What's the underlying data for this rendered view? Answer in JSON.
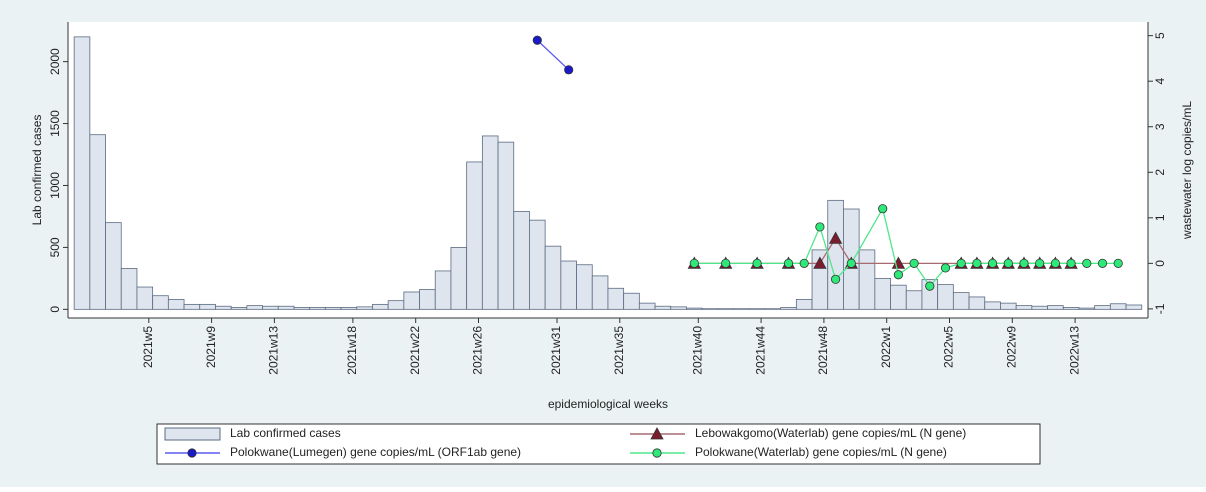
{
  "chart_data": {
    "type": "bar",
    "y_label": "Lab confirmed cases",
    "y2_label": "wastewater log copies/mL",
    "x_label": "epidemiological weeks",
    "categories": [
      null,
      null,
      null,
      null,
      "2021w5",
      null,
      null,
      null,
      "2021w9",
      null,
      null,
      null,
      "2021w13",
      null,
      null,
      null,
      null,
      "2021w18",
      null,
      null,
      null,
      "2021w22",
      null,
      null,
      null,
      "2021w26",
      null,
      null,
      null,
      null,
      "2021w31",
      null,
      null,
      null,
      "2021w35",
      null,
      null,
      null,
      null,
      "2021w40",
      null,
      null,
      null,
      "2021w44",
      null,
      null,
      null,
      "2021w48",
      null,
      null,
      null,
      "2022w1",
      null,
      null,
      null,
      "2022w5",
      null,
      null,
      null,
      "2022w9",
      null,
      null,
      null,
      "2022w13",
      null,
      null,
      null,
      null
    ],
    "series": [
      {
        "name": "Lab confirmed cases",
        "type": "bar",
        "color": "#dfe5ee",
        "stroke": "#5b6b82",
        "values": [
          2200,
          1410,
          700,
          330,
          180,
          110,
          80,
          40,
          40,
          25,
          15,
          30,
          25,
          25,
          15,
          15,
          15,
          15,
          20,
          40,
          70,
          140,
          160,
          310,
          500,
          1190,
          1400,
          1350,
          790,
          720,
          510,
          390,
          360,
          270,
          170,
          130,
          50,
          25,
          20,
          10,
          5,
          5,
          5,
          5,
          5,
          15,
          80,
          480,
          880,
          810,
          480,
          250,
          195,
          150,
          240,
          200,
          135,
          100,
          60,
          50,
          30,
          25,
          30,
          15,
          10,
          30,
          45,
          35
        ]
      },
      {
        "name": "Lebowakgomo(Waterlab) gene copies/mL (N gene)",
        "type": "line",
        "axis": "y2",
        "marker": "triangle",
        "color": "#a86a72",
        "marker_color": "#7b1c2e",
        "values": [
          null,
          null,
          null,
          null,
          null,
          null,
          null,
          null,
          null,
          null,
          null,
          null,
          null,
          null,
          null,
          null,
          null,
          null,
          null,
          null,
          null,
          null,
          null,
          null,
          null,
          null,
          null,
          null,
          null,
          null,
          null,
          null,
          null,
          null,
          null,
          null,
          null,
          null,
          null,
          0,
          null,
          0,
          null,
          0,
          null,
          0,
          null,
          0,
          0.55,
          0,
          null,
          null,
          0,
          null,
          null,
          null,
          0,
          0,
          0,
          0,
          0,
          0,
          0,
          0,
          null,
          null,
          null,
          null
        ]
      },
      {
        "name": "Polokwane(Lumegen) gene copies/mL (ORF1ab gene)",
        "type": "line",
        "axis": "y2",
        "marker": "circle",
        "color": "#5a5af0",
        "marker_color": "#1a1ac8",
        "values": [
          null,
          null,
          null,
          null,
          null,
          null,
          null,
          null,
          null,
          null,
          null,
          null,
          null,
          null,
          null,
          null,
          null,
          null,
          null,
          null,
          null,
          null,
          null,
          null,
          null,
          null,
          null,
          null,
          null,
          4.9,
          null,
          4.25,
          null,
          null,
          null,
          null,
          null,
          null,
          null,
          null,
          null,
          null,
          null,
          null,
          null,
          null,
          null,
          null,
          null,
          null,
          null,
          null,
          null,
          null,
          null,
          null,
          null,
          null,
          null,
          null,
          null,
          null,
          null,
          null,
          null,
          null,
          null,
          null
        ]
      },
      {
        "name": "Polokwane(Waterlab) gene copies/mL (N gene)",
        "type": "line",
        "axis": "y2",
        "marker": "circle",
        "color": "#4ee88a",
        "marker_color": "#2ee87a",
        "values": [
          null,
          null,
          null,
          null,
          null,
          null,
          null,
          null,
          null,
          null,
          null,
          null,
          null,
          null,
          null,
          null,
          null,
          null,
          null,
          null,
          null,
          null,
          null,
          null,
          null,
          null,
          null,
          null,
          null,
          null,
          null,
          null,
          null,
          null,
          null,
          null,
          null,
          null,
          null,
          0,
          null,
          0,
          null,
          0,
          null,
          0,
          0,
          0.8,
          -0.35,
          0,
          null,
          1.2,
          -0.25,
          0,
          -0.5,
          -0.1,
          0,
          0,
          0,
          0,
          0,
          0,
          0,
          0,
          0,
          0,
          0,
          null
        ]
      }
    ],
    "ylim": [
      -70,
      2320
    ],
    "yticks": [
      0,
      500,
      1000,
      1500,
      2000
    ],
    "y2lim": [
      -1.2,
      5.3
    ],
    "y2ticks": [
      -1,
      0,
      1,
      2,
      3,
      4,
      5
    ]
  }
}
